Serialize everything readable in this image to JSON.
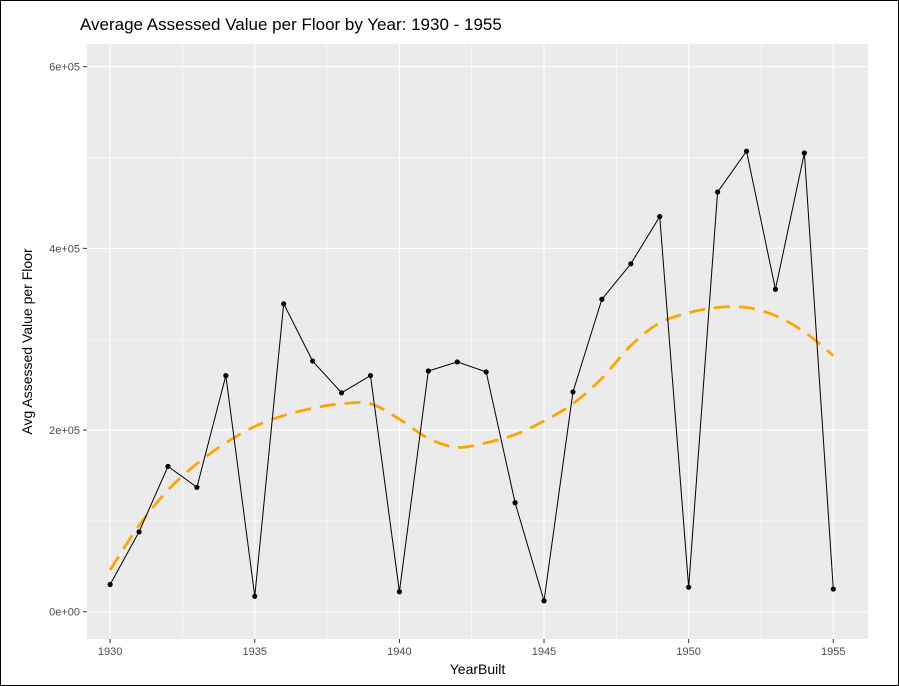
{
  "chart_data": {
    "type": "line",
    "title": "Average Assessed Value per Floor by Year: 1930 - 1955",
    "xlabel": "YearBuilt",
    "ylabel": "Avg Assessed Value per Floor",
    "xlim": [
      1929.2,
      1956.2
    ],
    "ylim": [
      -30000,
      625000
    ],
    "x_ticks": [
      1930,
      1935,
      1940,
      1945,
      1950,
      1955
    ],
    "x_tick_labels": [
      "1930",
      "1935",
      "1940",
      "1945",
      "1950",
      "1955"
    ],
    "y_ticks": [
      0,
      200000,
      400000,
      600000
    ],
    "y_tick_labels": [
      "0e+00",
      "2e+05",
      "4e+05",
      "6e+05"
    ],
    "x_minor_ticks": [
      1932.5,
      1937.5,
      1942.5,
      1947.5,
      1952.5
    ],
    "y_minor_ticks": [
      100000,
      300000,
      500000
    ],
    "grid": true,
    "panel_background": "#ebebeb",
    "grid_color": "#ffffff",
    "series": [
      {
        "style": "line+points",
        "color": "#000000",
        "x": [
          1930,
          1931,
          1932,
          1933,
          1934,
          1935,
          1936,
          1937,
          1938,
          1939,
          1940,
          1941,
          1942,
          1943,
          1944,
          1945,
          1946,
          1947,
          1948,
          1949,
          1950,
          1951,
          1952,
          1953,
          1954,
          1955
        ],
        "y": [
          30000,
          88000,
          160000,
          137000,
          260000,
          17000,
          339000,
          276000,
          241000,
          260000,
          22000,
          265000,
          275000,
          264000,
          120000,
          12000,
          242000,
          344000,
          383000,
          435000,
          27000,
          462000,
          507000,
          355000,
          505000,
          25000
        ]
      },
      {
        "style": "dashed-smooth",
        "color": "#ffa500",
        "x": [
          1930,
          1931,
          1932,
          1933,
          1934,
          1935,
          1936,
          1937,
          1938,
          1939,
          1940,
          1941,
          1942,
          1943,
          1944,
          1945,
          1946,
          1947,
          1948,
          1949,
          1950,
          1951,
          1952,
          1953,
          1954,
          1955
        ],
        "y": [
          46000,
          95000,
          134000,
          163000,
          186000,
          204000,
          216000,
          224000,
          229000,
          229000,
          212000,
          191000,
          181000,
          186000,
          195000,
          210000,
          229000,
          257000,
          293000,
          318000,
          329000,
          335000,
          335000,
          326000,
          308000,
          282000
        ]
      }
    ]
  }
}
